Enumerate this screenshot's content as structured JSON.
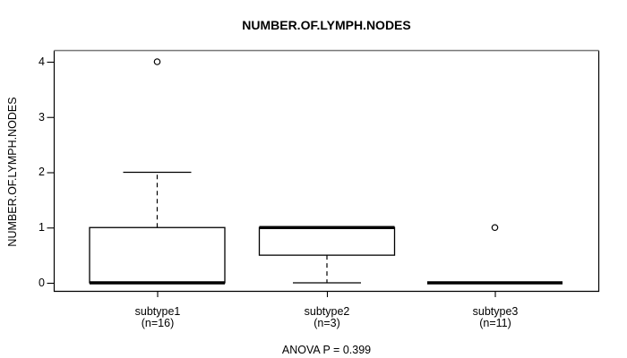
{
  "chart_data": {
    "type": "boxplot",
    "title": "NUMBER.OF.LYMPH.NODES",
    "ylabel": "NUMBER.OF.LYMPH.NODES",
    "xlabel": "",
    "annotation": "ANOVA P = 0.399",
    "ylim": [
      0,
      4
    ],
    "yticks": [
      0,
      1,
      2,
      3,
      4
    ],
    "grid": false,
    "legend": "none",
    "groups": [
      {
        "label": "subtype1",
        "n_label": "(n=16)",
        "n": 16,
        "q1": 0,
        "median": 0,
        "q3": 1,
        "whisker_low": 0,
        "whisker_high": 2,
        "outliers": [
          4
        ]
      },
      {
        "label": "subtype2",
        "n_label": "(n=3)",
        "n": 3,
        "q1": 0.5,
        "median": 1,
        "q3": 1,
        "whisker_low": 0,
        "whisker_high": 1,
        "outliers": []
      },
      {
        "label": "subtype3",
        "n_label": "(n=11)",
        "n": 11,
        "q1": 0,
        "median": 0,
        "q3": 0,
        "whisker_low": 0,
        "whisker_high": 0,
        "outliers": [
          1
        ]
      }
    ],
    "colors": {
      "line": "#000000",
      "box_fill": "#ffffff",
      "frame_top": "#777777",
      "background": "#ffffff"
    }
  }
}
